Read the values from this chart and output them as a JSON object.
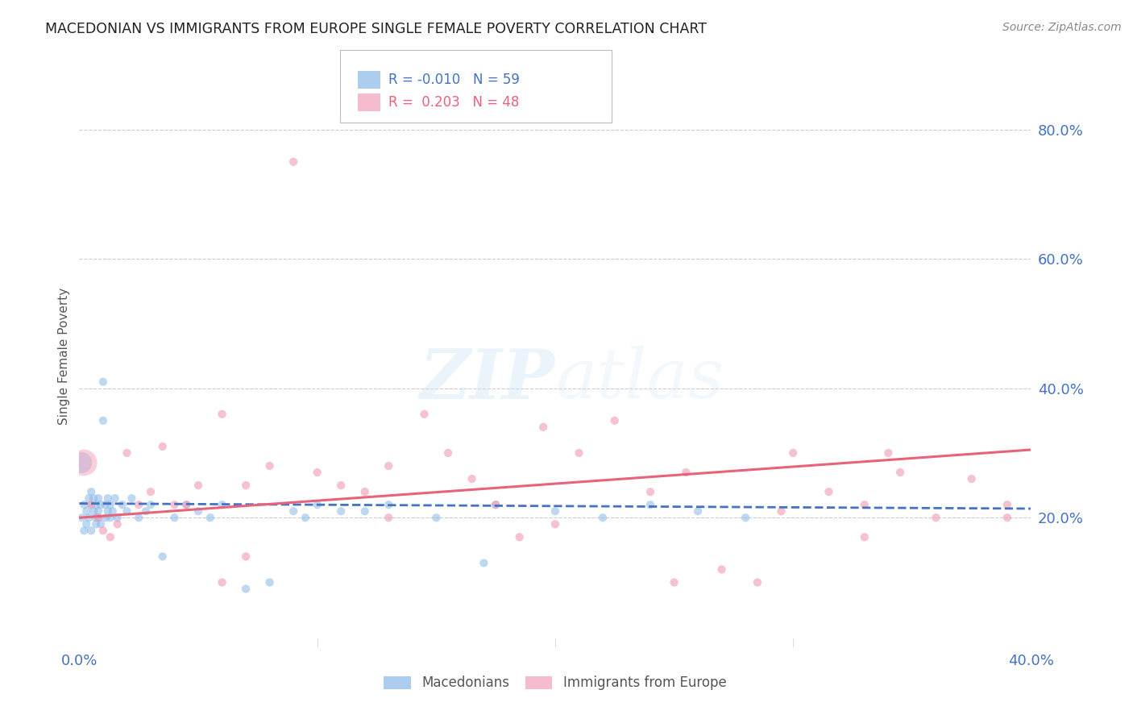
{
  "title": "MACEDONIAN VS IMMIGRANTS FROM EUROPE SINGLE FEMALE POVERTY CORRELATION CHART",
  "source": "Source: ZipAtlas.com",
  "ylabel": "Single Female Poverty",
  "xlim": [
    0.0,
    0.4
  ],
  "ylim": [
    0.0,
    0.9
  ],
  "yticks": [
    0.2,
    0.4,
    0.6,
    0.8
  ],
  "ytick_labels": [
    "20.0%",
    "40.0%",
    "60.0%",
    "80.0%"
  ],
  "xticks": [
    0.0,
    0.1,
    0.2,
    0.3,
    0.4
  ],
  "xtick_labels": [
    "0.0%",
    "",
    "",
    "",
    "40.0%"
  ],
  "legend_r1": "R = -0.010",
  "legend_n1": "N = 59",
  "legend_r2": "R =  0.203",
  "legend_n2": "N = 48",
  "blue_color": "#89B8E8",
  "pink_color": "#F2A0B8",
  "line_blue": "#4472C4",
  "line_pink": "#E8637A",
  "macedonians_label": "Macedonians",
  "immigrants_label": "Immigrants from Europe",
  "blue_scatter_x": [
    0.001,
    0.002,
    0.002,
    0.003,
    0.003,
    0.004,
    0.004,
    0.005,
    0.005,
    0.005,
    0.006,
    0.006,
    0.007,
    0.007,
    0.007,
    0.008,
    0.008,
    0.008,
    0.009,
    0.009,
    0.01,
    0.01,
    0.011,
    0.011,
    0.012,
    0.012,
    0.013,
    0.013,
    0.014,
    0.015,
    0.016,
    0.018,
    0.02,
    0.022,
    0.025,
    0.028,
    0.03,
    0.035,
    0.04,
    0.045,
    0.05,
    0.055,
    0.06,
    0.07,
    0.08,
    0.09,
    0.1,
    0.12,
    0.15,
    0.175,
    0.2,
    0.22,
    0.24,
    0.26,
    0.28,
    0.17,
    0.13,
    0.11,
    0.095
  ],
  "blue_scatter_y": [
    0.2,
    0.22,
    0.18,
    0.21,
    0.19,
    0.23,
    0.2,
    0.22,
    0.24,
    0.18,
    0.21,
    0.23,
    0.2,
    0.22,
    0.19,
    0.21,
    0.23,
    0.2,
    0.22,
    0.19,
    0.41,
    0.35,
    0.22,
    0.2,
    0.21,
    0.23,
    0.2,
    0.22,
    0.21,
    0.23,
    0.2,
    0.22,
    0.21,
    0.23,
    0.2,
    0.21,
    0.22,
    0.14,
    0.2,
    0.22,
    0.21,
    0.2,
    0.22,
    0.09,
    0.1,
    0.21,
    0.22,
    0.21,
    0.2,
    0.22,
    0.21,
    0.2,
    0.22,
    0.21,
    0.2,
    0.13,
    0.22,
    0.21,
    0.2
  ],
  "blue_scatter_s": 55,
  "blue_large_x": [
    0.001
  ],
  "blue_large_y": [
    0.285
  ],
  "blue_large_s": 350,
  "pink_scatter_x": [
    0.005,
    0.008,
    0.01,
    0.013,
    0.016,
    0.02,
    0.025,
    0.03,
    0.035,
    0.04,
    0.045,
    0.05,
    0.06,
    0.07,
    0.08,
    0.09,
    0.1,
    0.11,
    0.12,
    0.13,
    0.145,
    0.155,
    0.165,
    0.175,
    0.185,
    0.195,
    0.21,
    0.225,
    0.24,
    0.255,
    0.27,
    0.285,
    0.3,
    0.315,
    0.33,
    0.345,
    0.36,
    0.375,
    0.39,
    0.34,
    0.39,
    0.25,
    0.13,
    0.07,
    0.06,
    0.2,
    0.295,
    0.33
  ],
  "pink_scatter_y": [
    0.22,
    0.2,
    0.18,
    0.17,
    0.19,
    0.3,
    0.22,
    0.24,
    0.31,
    0.22,
    0.22,
    0.25,
    0.36,
    0.25,
    0.28,
    0.75,
    0.27,
    0.25,
    0.24,
    0.28,
    0.36,
    0.3,
    0.26,
    0.22,
    0.17,
    0.34,
    0.3,
    0.35,
    0.24,
    0.27,
    0.12,
    0.1,
    0.3,
    0.24,
    0.22,
    0.27,
    0.2,
    0.26,
    0.22,
    0.3,
    0.2,
    0.1,
    0.2,
    0.14,
    0.1,
    0.19,
    0.21,
    0.17
  ],
  "pink_scatter_s": 55,
  "pink_large_x": [
    0.002
  ],
  "pink_large_y": [
    0.285
  ],
  "pink_large_s": 550,
  "blue_line_x": [
    0.0,
    0.4
  ],
  "blue_line_y": [
    0.222,
    0.214
  ],
  "pink_line_x": [
    0.0,
    0.4
  ],
  "pink_line_y": [
    0.2,
    0.305
  ],
  "axis_color": "#4472C4",
  "grid_color": "#CCCCCC",
  "title_color": "#222222",
  "background_color": "#FFFFFF"
}
